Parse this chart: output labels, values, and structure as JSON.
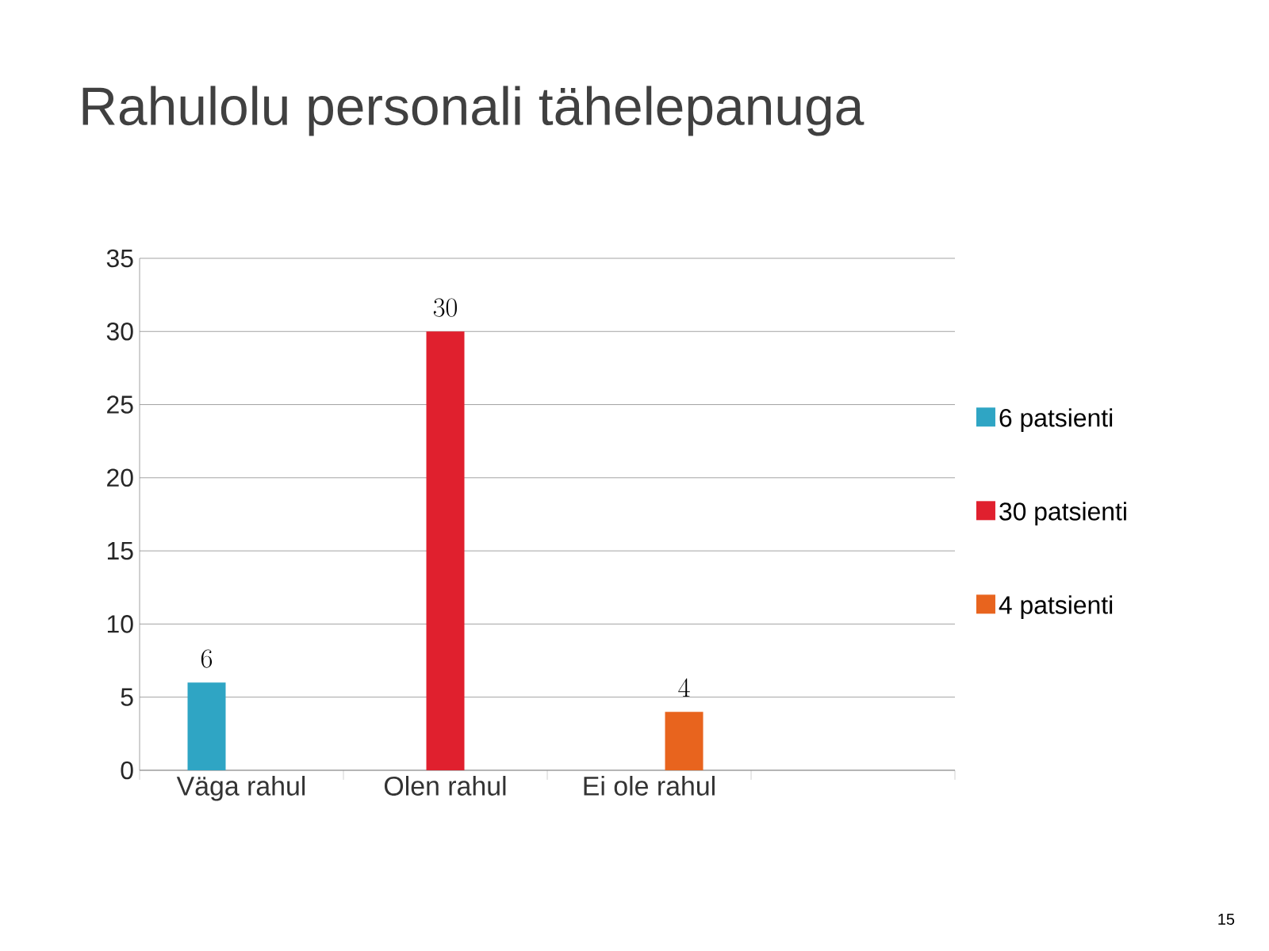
{
  "chart_data": {
    "type": "bar",
    "title": "Rahulolu personali tähelepanuga",
    "categories": [
      "Väga rahul",
      "Olen rahul",
      "Ei ole rahul",
      null
    ],
    "series": [
      {
        "name": "6 patsienti",
        "color": "#2fa5c4",
        "values": [
          6,
          null,
          null,
          null
        ]
      },
      {
        "name": "30 patsienti",
        "color": "#e0202e",
        "values": [
          null,
          30,
          null,
          null
        ]
      },
      {
        "name": "4 patsienti",
        "color": "#e8641e",
        "values": [
          null,
          null,
          4,
          null
        ]
      }
    ],
    "ylim": [
      0,
      35
    ],
    "yticks": [
      0,
      5,
      10,
      15,
      20,
      25,
      30,
      35
    ],
    "grid": "y",
    "legend": "right",
    "data_labels": true,
    "annotations": [
      "15"
    ]
  }
}
